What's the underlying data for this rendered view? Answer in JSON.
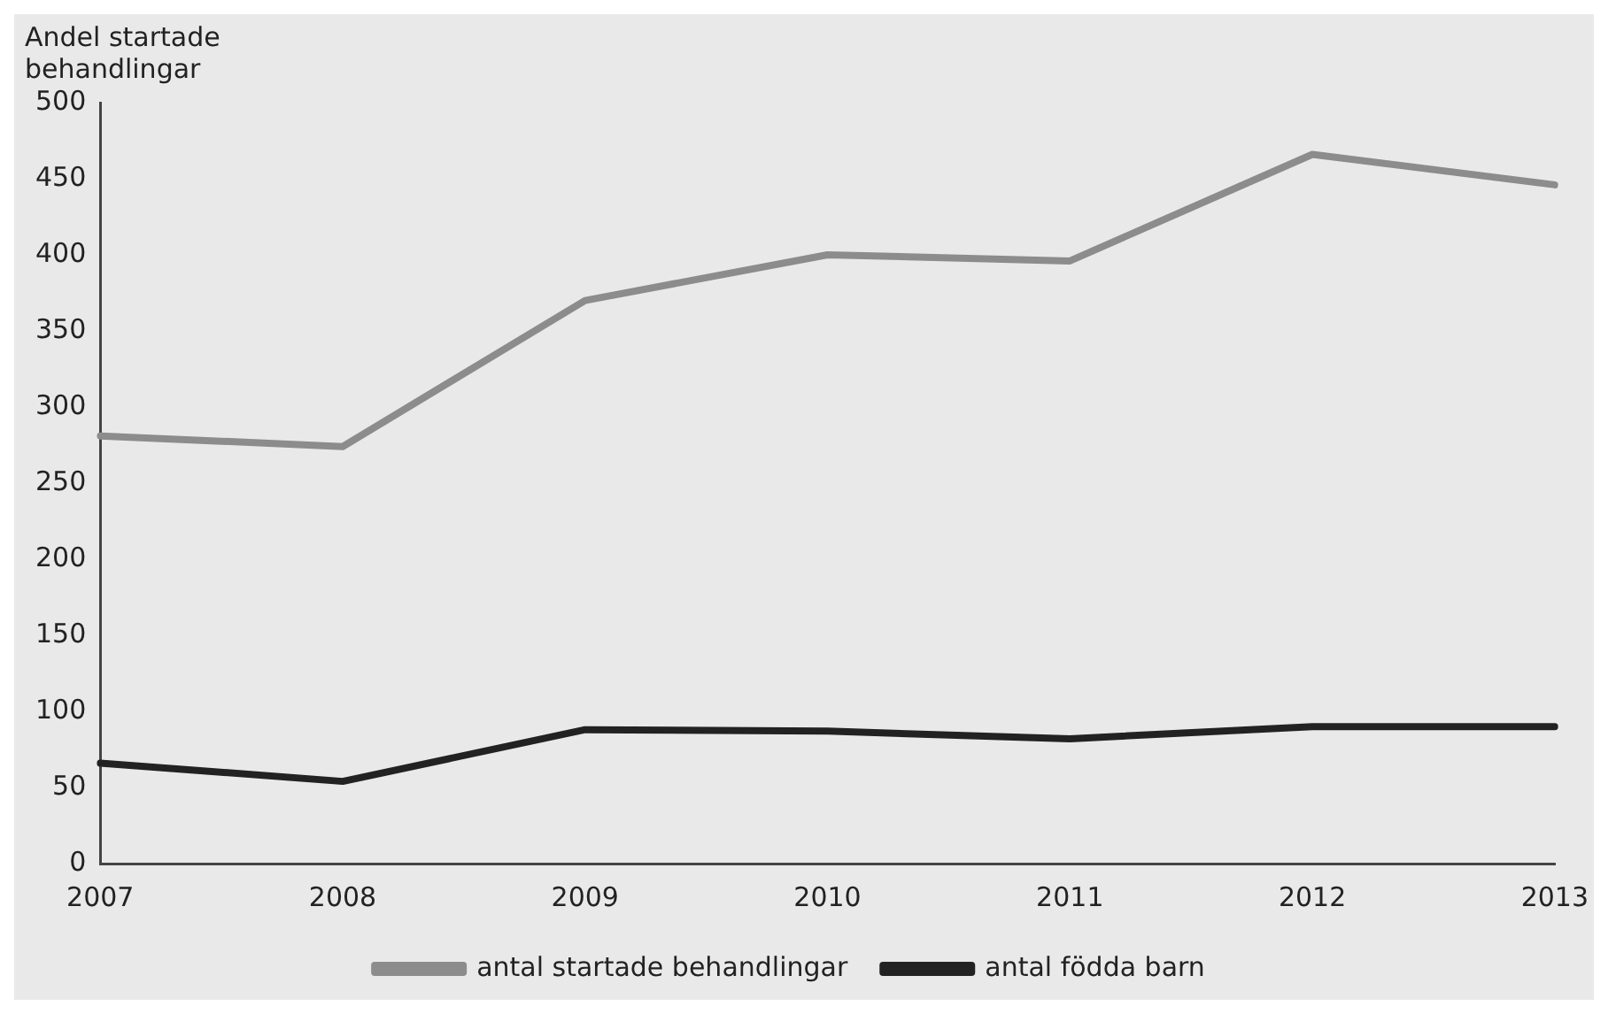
{
  "chart_data": {
    "type": "line",
    "ylabel": "Andel startade behandlingar",
    "categories": [
      "2007",
      "2008",
      "2009",
      "2010",
      "2011",
      "2012",
      "2013"
    ],
    "series": [
      {
        "name": "antal startade behandlingar",
        "color": "#8c8c8c",
        "values": [
          281,
          274,
          370,
          400,
          396,
          466,
          446
        ]
      },
      {
        "name": "antal födda barn",
        "color": "#222222",
        "values": [
          66,
          54,
          88,
          87,
          82,
          90,
          90
        ]
      }
    ],
    "ylim": [
      0,
      500
    ],
    "yticks": [
      0,
      50,
      100,
      150,
      200,
      250,
      300,
      350,
      400,
      450,
      500
    ],
    "grid": false,
    "legend": "bottom",
    "marker": "none",
    "line_style": "solid"
  }
}
